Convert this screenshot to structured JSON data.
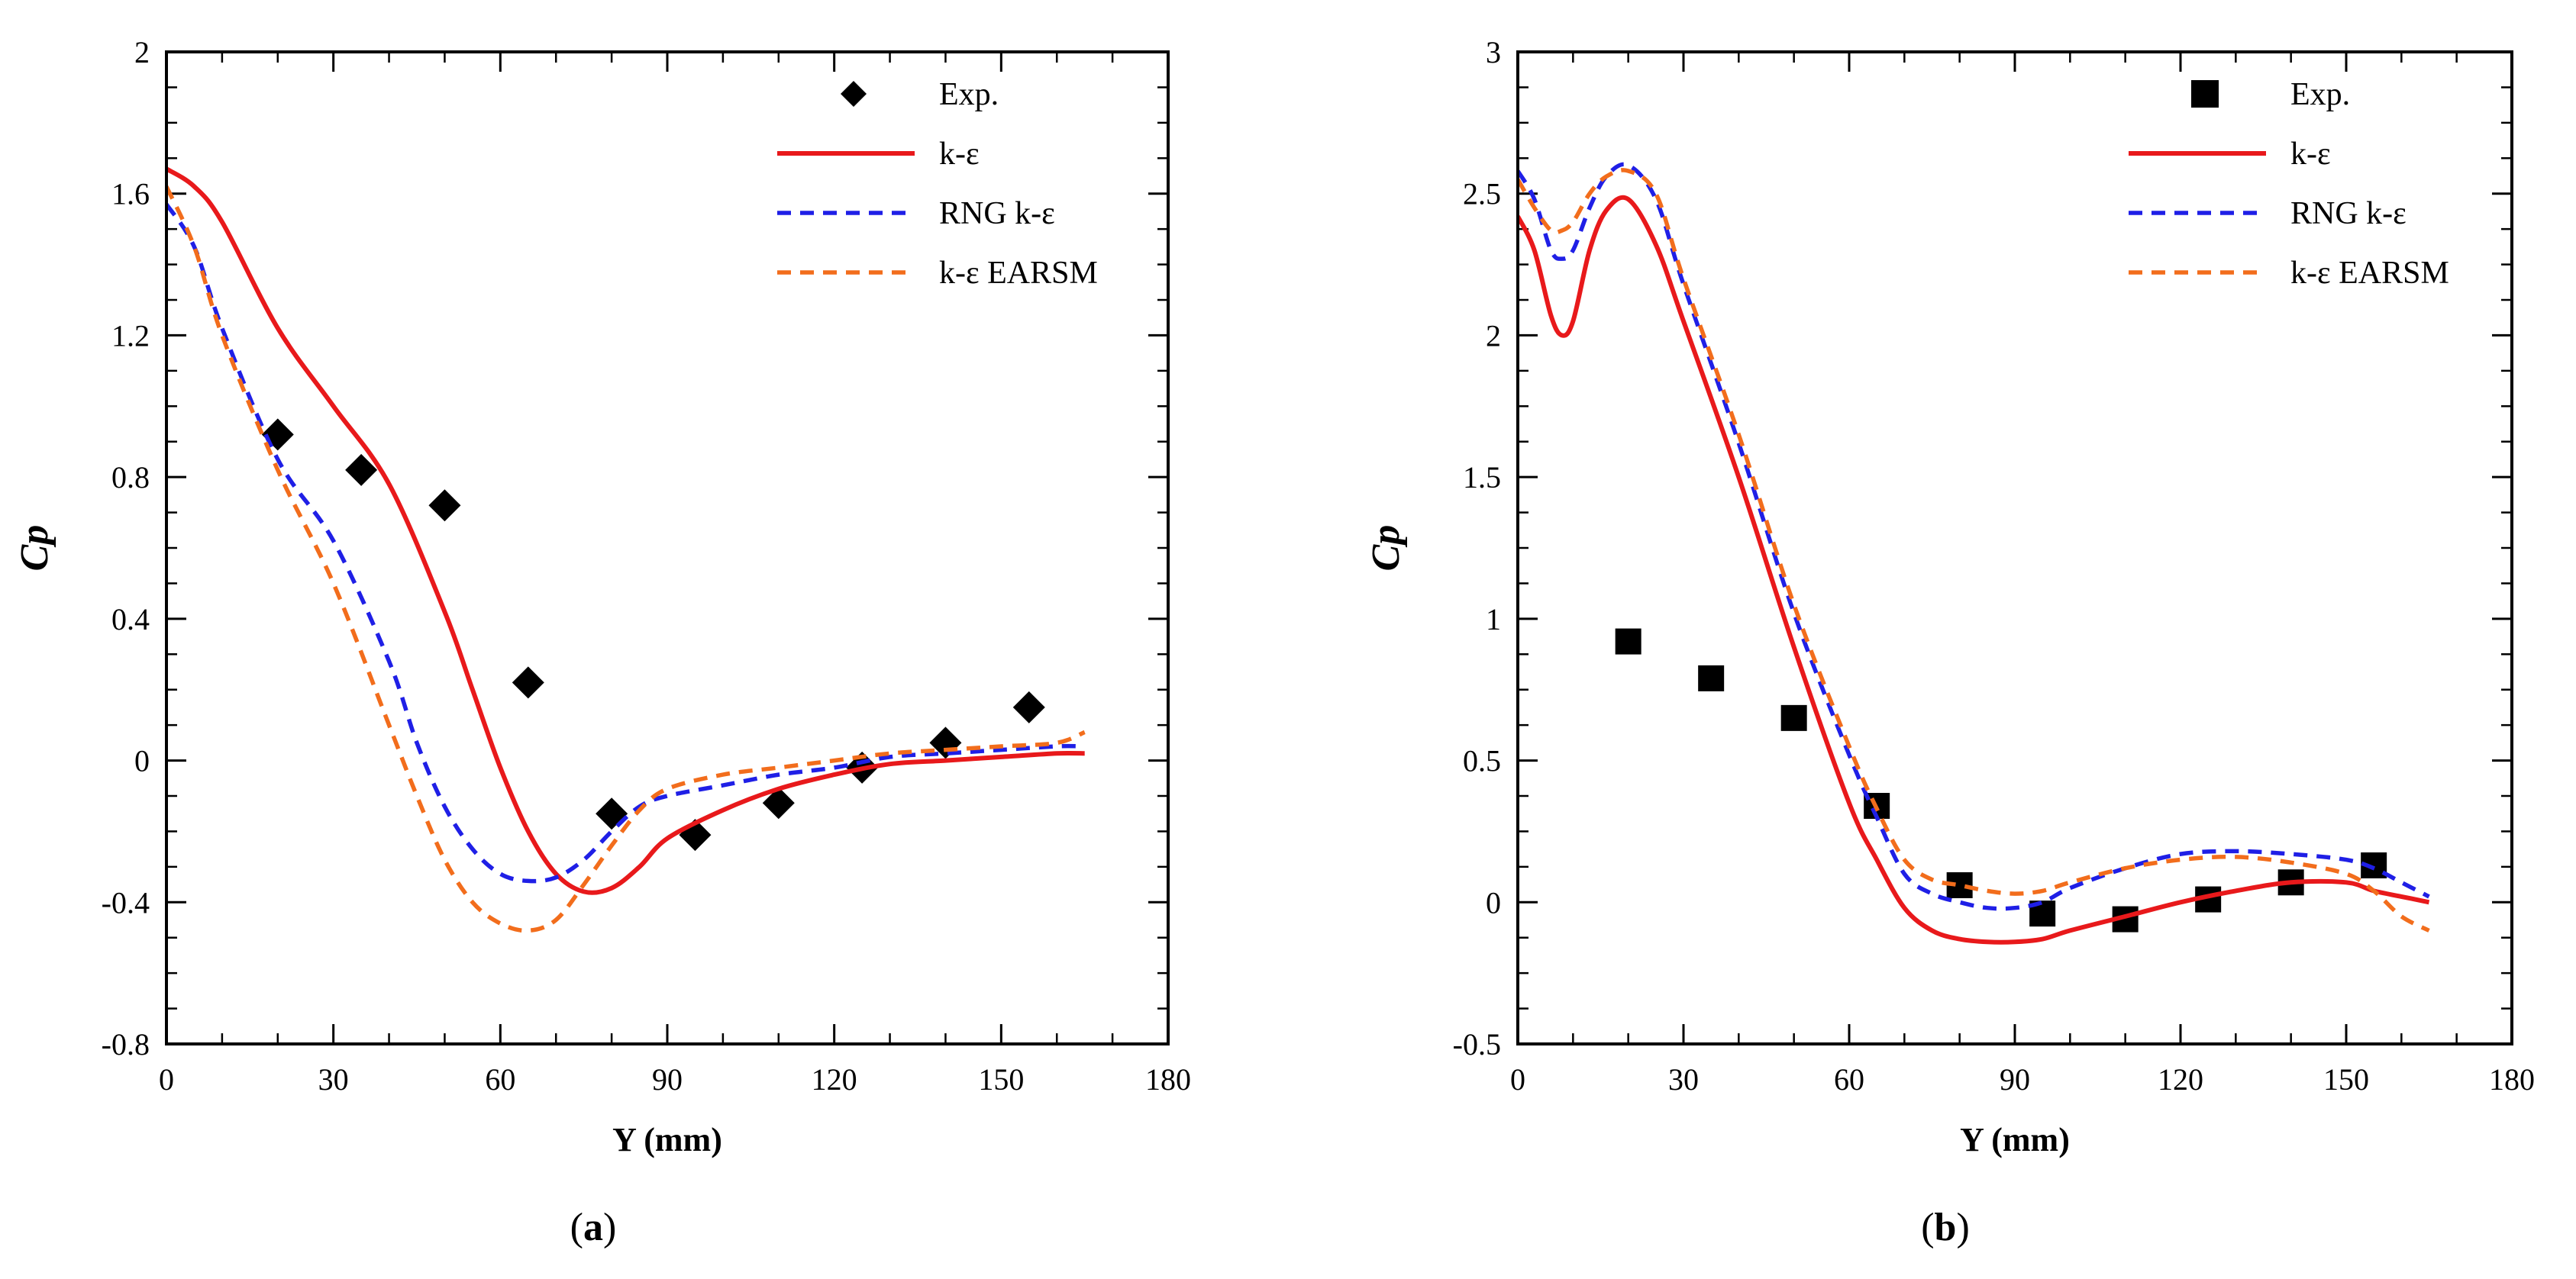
{
  "chart_data": [
    {
      "type": "line",
      "panel_label": "(a)",
      "panel_letter": "a",
      "xlabel": "Y (mm)",
      "ylabel": "Cp",
      "xlim": [
        0,
        180
      ],
      "ylim": [
        -0.8,
        2.0
      ],
      "xticks": [
        0,
        30,
        60,
        90,
        120,
        150,
        180
      ],
      "xtick_labels": [
        "0",
        "30",
        "60",
        "90",
        "120",
        "150",
        "180"
      ],
      "yticks": [
        -0.8,
        -0.4,
        0,
        0.4,
        0.8,
        1.2,
        1.6,
        2.0
      ],
      "ytick_labels": [
        "-0.8",
        "-0.4",
        "0",
        "0.4",
        "0.8",
        "1.2",
        "1.6",
        "2"
      ],
      "legend_position": "top-right",
      "marker": "diamond",
      "series": [
        {
          "name": "Exp.",
          "style": "markers",
          "color": "#000000",
          "x": [
            20,
            35,
            50,
            65,
            80,
            95,
            110,
            125,
            140,
            155
          ],
          "y": [
            0.92,
            0.82,
            0.72,
            0.22,
            -0.15,
            -0.21,
            -0.12,
            -0.02,
            0.05,
            0.15
          ]
        },
        {
          "name": "k-ε",
          "style": "solid",
          "color": "#e8191b",
          "x": [
            0,
            5,
            10,
            20,
            30,
            40,
            50,
            55,
            60,
            65,
            70,
            75,
            80,
            85,
            90,
            100,
            110,
            120,
            130,
            140,
            150,
            160,
            165
          ],
          "y": [
            1.67,
            1.62,
            1.52,
            1.22,
            1.0,
            0.78,
            0.42,
            0.2,
            -0.02,
            -0.2,
            -0.32,
            -0.37,
            -0.36,
            -0.3,
            -0.22,
            -0.14,
            -0.08,
            -0.04,
            -0.01,
            0.0,
            0.01,
            0.02,
            0.02
          ]
        },
        {
          "name": "RNG k-ε",
          "style": "dashed",
          "color": "#1f1fe6",
          "x": [
            0,
            5,
            10,
            20,
            30,
            40,
            45,
            50,
            55,
            60,
            65,
            70,
            75,
            80,
            85,
            90,
            100,
            110,
            120,
            130,
            140,
            150,
            160,
            165
          ],
          "y": [
            1.57,
            1.45,
            1.22,
            0.85,
            0.62,
            0.28,
            0.05,
            -0.13,
            -0.25,
            -0.32,
            -0.34,
            -0.33,
            -0.28,
            -0.2,
            -0.13,
            -0.1,
            -0.07,
            -0.04,
            -0.02,
            0.01,
            0.02,
            0.03,
            0.04,
            0.04
          ]
        },
        {
          "name": "k-ε EARSM",
          "style": "dashed",
          "color": "#f26d1c",
          "x": [
            0,
            5,
            10,
            20,
            30,
            40,
            45,
            50,
            55,
            60,
            65,
            70,
            75,
            80,
            85,
            90,
            100,
            110,
            120,
            130,
            140,
            150,
            160,
            165
          ],
          "y": [
            1.62,
            1.45,
            1.2,
            0.82,
            0.5,
            0.1,
            -0.1,
            -0.28,
            -0.4,
            -0.46,
            -0.48,
            -0.45,
            -0.35,
            -0.24,
            -0.14,
            -0.08,
            -0.04,
            -0.02,
            0.0,
            0.02,
            0.03,
            0.04,
            0.05,
            0.08
          ]
        }
      ]
    },
    {
      "type": "line",
      "panel_label": "(b)",
      "panel_letter": "b",
      "xlabel": "Y (mm)",
      "ylabel": "Cp",
      "xlim": [
        0,
        180
      ],
      "ylim": [
        -0.5,
        3.0
      ],
      "xticks": [
        0,
        30,
        60,
        90,
        120,
        150,
        180
      ],
      "xtick_labels": [
        "0",
        "30",
        "60",
        "90",
        "120",
        "150",
        "180"
      ],
      "yticks": [
        -0.5,
        0,
        0.5,
        1.0,
        1.5,
        2.0,
        2.5,
        3.0
      ],
      "ytick_labels": [
        "-0.5",
        "0",
        "0.5",
        "1",
        "1.5",
        "2",
        "2.5",
        "3"
      ],
      "legend_position": "top-right",
      "marker": "square",
      "series": [
        {
          "name": "Exp.",
          "style": "markers",
          "color": "#000000",
          "x": [
            20,
            35,
            50,
            65,
            80,
            95,
            110,
            125,
            140,
            155
          ],
          "y": [
            0.92,
            0.79,
            0.65,
            0.34,
            0.06,
            -0.04,
            -0.06,
            0.01,
            0.07,
            0.13
          ]
        },
        {
          "name": "k-ε",
          "style": "solid",
          "color": "#e8191b",
          "x": [
            0,
            3,
            6,
            8,
            10,
            13,
            16,
            20,
            25,
            30,
            40,
            50,
            60,
            65,
            70,
            75,
            80,
            85,
            90,
            95,
            100,
            110,
            120,
            130,
            140,
            150,
            155,
            160,
            165
          ],
          "y": [
            2.42,
            2.3,
            2.07,
            2.0,
            2.05,
            2.3,
            2.44,
            2.48,
            2.32,
            2.05,
            1.5,
            0.9,
            0.35,
            0.15,
            -0.02,
            -0.1,
            -0.13,
            -0.14,
            -0.14,
            -0.13,
            -0.1,
            -0.05,
            0.0,
            0.04,
            0.07,
            0.07,
            0.04,
            0.02,
            0.0
          ]
        },
        {
          "name": "RNG k-ε",
          "style": "dashed",
          "color": "#1f1fe6",
          "x": [
            0,
            3,
            6,
            8,
            10,
            13,
            16,
            20,
            25,
            30,
            40,
            50,
            60,
            65,
            70,
            75,
            80,
            85,
            90,
            95,
            100,
            110,
            120,
            130,
            140,
            150,
            155,
            160,
            165
          ],
          "y": [
            2.58,
            2.48,
            2.3,
            2.27,
            2.3,
            2.45,
            2.56,
            2.6,
            2.48,
            2.18,
            1.62,
            1.02,
            0.52,
            0.3,
            0.1,
            0.03,
            0.0,
            -0.02,
            -0.02,
            0.0,
            0.05,
            0.12,
            0.17,
            0.18,
            0.17,
            0.15,
            0.12,
            0.07,
            0.02
          ]
        },
        {
          "name": "k-ε EARSM",
          "style": "dashed",
          "color": "#f26d1c",
          "x": [
            0,
            3,
            6,
            8,
            10,
            13,
            16,
            20,
            25,
            30,
            40,
            50,
            60,
            65,
            70,
            75,
            80,
            85,
            90,
            95,
            100,
            110,
            120,
            130,
            140,
            150,
            155,
            160,
            165
          ],
          "y": [
            2.55,
            2.45,
            2.37,
            2.37,
            2.4,
            2.5,
            2.56,
            2.58,
            2.5,
            2.2,
            1.65,
            1.05,
            0.55,
            0.33,
            0.15,
            0.08,
            0.06,
            0.04,
            0.03,
            0.04,
            0.07,
            0.12,
            0.15,
            0.16,
            0.14,
            0.1,
            0.04,
            -0.05,
            -0.1
          ]
        }
      ]
    }
  ]
}
